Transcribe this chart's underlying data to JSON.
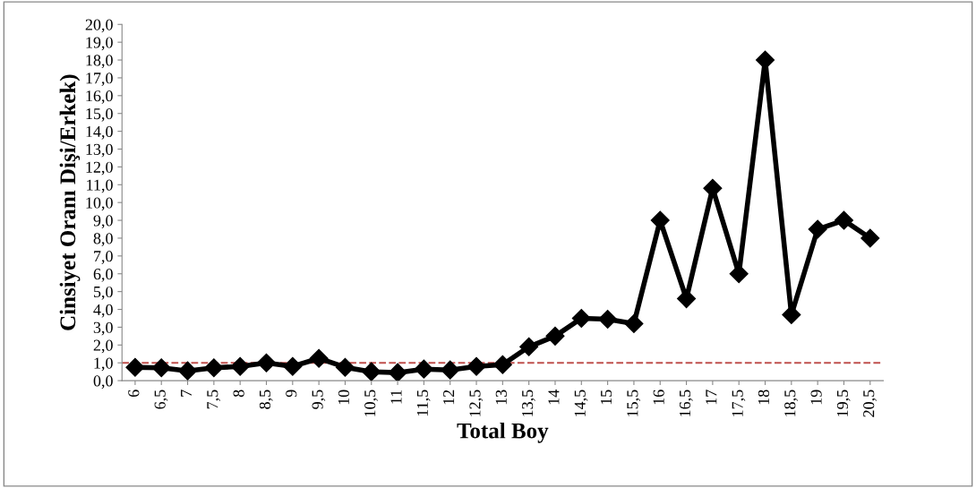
{
  "chart_data": {
    "type": "line",
    "xlabel": "Total Boy",
    "ylabel": "Cinsiyet Oranı Dişi/Erkek)",
    "categories": [
      "6",
      "6,5",
      "7",
      "7,5",
      "8",
      "8,5",
      "9",
      "9,5",
      "10",
      "10,5",
      "11",
      "11,5",
      "12",
      "12,5",
      "13",
      "13,5",
      "14",
      "14,5",
      "15",
      "15,5",
      "16",
      "16,5",
      "17",
      "17,5",
      "18",
      "18,5",
      "19",
      "19,5",
      "20,5"
    ],
    "series": [
      {
        "color": "#000000",
        "values": [
          0.75,
          0.72,
          0.55,
          0.72,
          0.8,
          1.0,
          0.8,
          1.25,
          0.75,
          0.5,
          0.45,
          0.65,
          0.6,
          0.8,
          0.9,
          1.9,
          2.5,
          3.5,
          3.45,
          3.2,
          9.0,
          4.6,
          10.8,
          6.0,
          18.0,
          3.7,
          8.5,
          9.0,
          8.0
        ]
      }
    ],
    "ylim": [
      0,
      20
    ],
    "yticks": [
      {
        "value": 0,
        "label": "0,0"
      },
      {
        "value": 1,
        "label": "1,0"
      },
      {
        "value": 2,
        "label": "2,0"
      },
      {
        "value": 3,
        "label": "3,0"
      },
      {
        "value": 4,
        "label": "4,0"
      },
      {
        "value": 5,
        "label": "5,0"
      },
      {
        "value": 6,
        "label": "6,0"
      },
      {
        "value": 7,
        "label": "7,0"
      },
      {
        "value": 8,
        "label": "8,0"
      },
      {
        "value": 9,
        "label": "9,0"
      },
      {
        "value": 10,
        "label": "10,0"
      },
      {
        "value": 11,
        "label": "11,0"
      },
      {
        "value": 12,
        "label": "12,0"
      },
      {
        "value": 13,
        "label": "13,0"
      },
      {
        "value": 14,
        "label": "14,0"
      },
      {
        "value": 15,
        "label": "15,0"
      },
      {
        "value": 16,
        "label": "16,0"
      },
      {
        "value": 17,
        "label": "17,0"
      },
      {
        "value": 18,
        "label": "18,0"
      },
      {
        "value": 19,
        "label": "19,0"
      },
      {
        "value": 20,
        "label": "20,0"
      }
    ],
    "ref_lines": [
      {
        "axis": "y",
        "value": 1.0,
        "color": "#c0504d",
        "line_style": "dashed"
      }
    ],
    "marker": "diamond",
    "line_style": "solid",
    "grid": false,
    "legend": false
  }
}
